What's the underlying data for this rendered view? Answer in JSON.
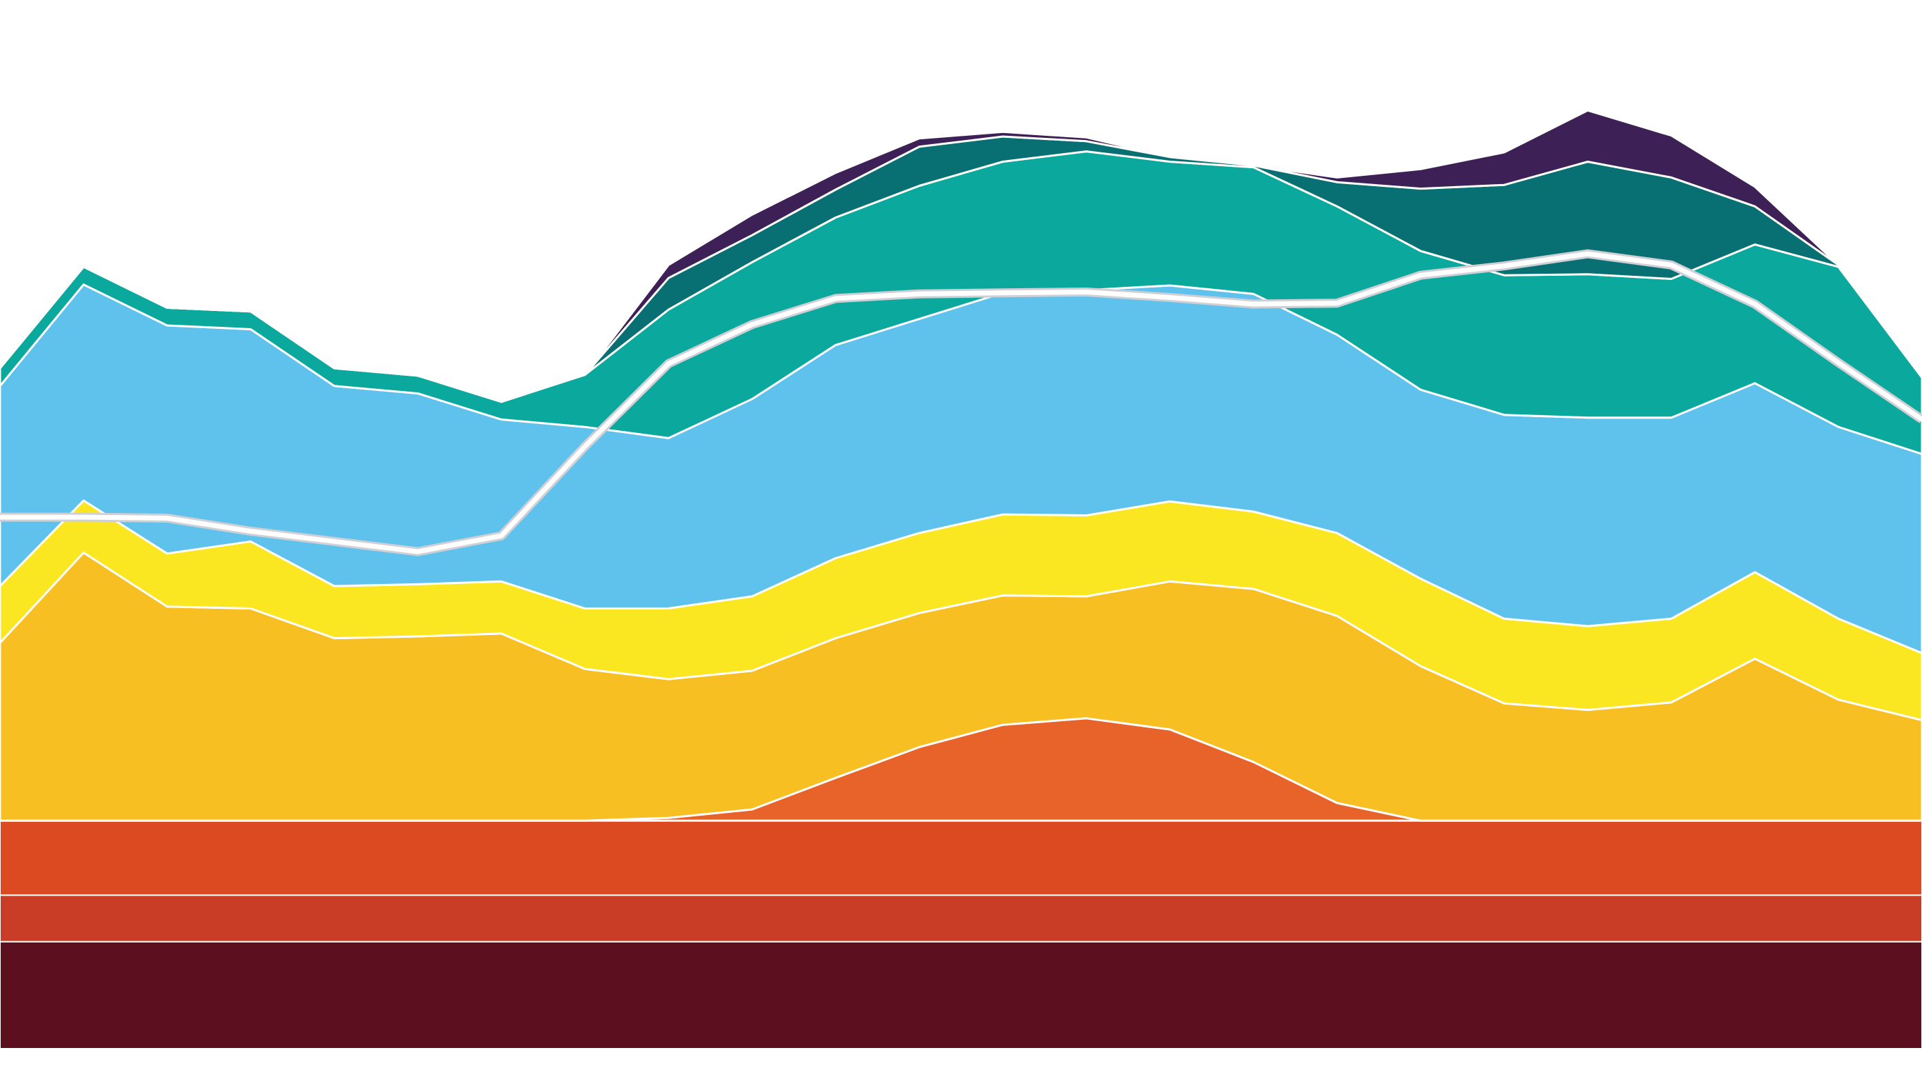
{
  "chart_data": {
    "type": "area",
    "stacked": true,
    "title": "",
    "xlabel": "",
    "ylabel": "",
    "grid": false,
    "legend": "none",
    "x": [
      0,
      1,
      2,
      3,
      4,
      5,
      6,
      7,
      8,
      9,
      10,
      11,
      12,
      13,
      14,
      15,
      16,
      17,
      18,
      19,
      20,
      21,
      22,
      23
    ],
    "ylim": [
      0,
      100
    ],
    "baseline_bands": [
      {
        "color": "#5C101F",
        "value": 11.5
      },
      {
        "color": "#C93C25",
        "value": 5.0
      },
      {
        "color": "#DC4A22",
        "value": 8.0
      }
    ],
    "series": [
      {
        "color": "#E8632A",
        "values": [
          0,
          0,
          0,
          0,
          0,
          0,
          0,
          0,
          0.3,
          1.2,
          4.6,
          7.9,
          10.3,
          11.0,
          9.8,
          6.3,
          1.9,
          0,
          0,
          0,
          0,
          0,
          0,
          0
        ]
      },
      {
        "color": "#F8BF22",
        "values": [
          19.1,
          28.8,
          23.0,
          22.8,
          19.6,
          19.8,
          20.1,
          16.3,
          14.9,
          14.9,
          15.0,
          14.4,
          13.9,
          13.1,
          15.9,
          18.6,
          20.1,
          16.6,
          12.6,
          11.9,
          12.7,
          17.4,
          13.0,
          10.8
        ]
      },
      {
        "color": "#FAE722",
        "values": [
          6.1,
          5.6,
          5.7,
          7.2,
          5.6,
          5.6,
          5.6,
          6.5,
          7.6,
          8.0,
          8.6,
          8.6,
          8.7,
          8.7,
          8.6,
          8.3,
          8.9,
          9.4,
          9.1,
          9.0,
          9.0,
          9.3,
          8.7,
          7.2
        ]
      },
      {
        "color": "#5EC2ED",
        "values": [
          21.5,
          23.2,
          24.5,
          22.8,
          21.5,
          20.5,
          17.4,
          19.5,
          18.3,
          21.2,
          22.9,
          23.0,
          23.8,
          24.2,
          23.2,
          23.4,
          21.3,
          20.3,
          21.9,
          22.4,
          21.6,
          20.3,
          20.6,
          21.4
        ]
      },
      {
        "color": "#0BA89D",
        "values": [
          1.9,
          1.9,
          1.9,
          1.9,
          1.9,
          1.9,
          1.9,
          5.6,
          13.8,
          14.7,
          13.7,
          14.3,
          14.1,
          14.9,
          13.3,
          13.6,
          13.8,
          14.9,
          15.0,
          15.4,
          14.9,
          14.9,
          17.2,
          8.2
        ]
      },
      {
        "color": "#086F72",
        "values": [
          0,
          0,
          0,
          0,
          0,
          0,
          0,
          0,
          3.4,
          2.9,
          3.0,
          4.2,
          2.7,
          1.1,
          0.5,
          0.2,
          2.6,
          6.7,
          9.7,
          12.1,
          10.9,
          4.1,
          0.2,
          0
        ]
      },
      {
        "color": "#3D2055",
        "values": [
          0,
          0,
          0,
          0,
          0,
          0,
          0,
          0,
          1.4,
          2.2,
          1.8,
          0.9,
          0.5,
          0.4,
          0,
          0,
          0.5,
          2.1,
          3.5,
          5.5,
          4.5,
          2.1,
          0,
          0
        ]
      }
    ],
    "overlay_line": {
      "color": "#ffffff",
      "values": [
        32.6,
        32.6,
        32.5,
        31.1,
        30.0,
        28.9,
        30.6,
        40.2,
        49.1,
        53.3,
        56.1,
        56.6,
        56.7,
        56.8,
        56.2,
        55.5,
        55.6,
        58.6,
        59.6,
        60.9,
        59.7,
        55.5,
        49.2,
        43.1
      ]
    }
  }
}
